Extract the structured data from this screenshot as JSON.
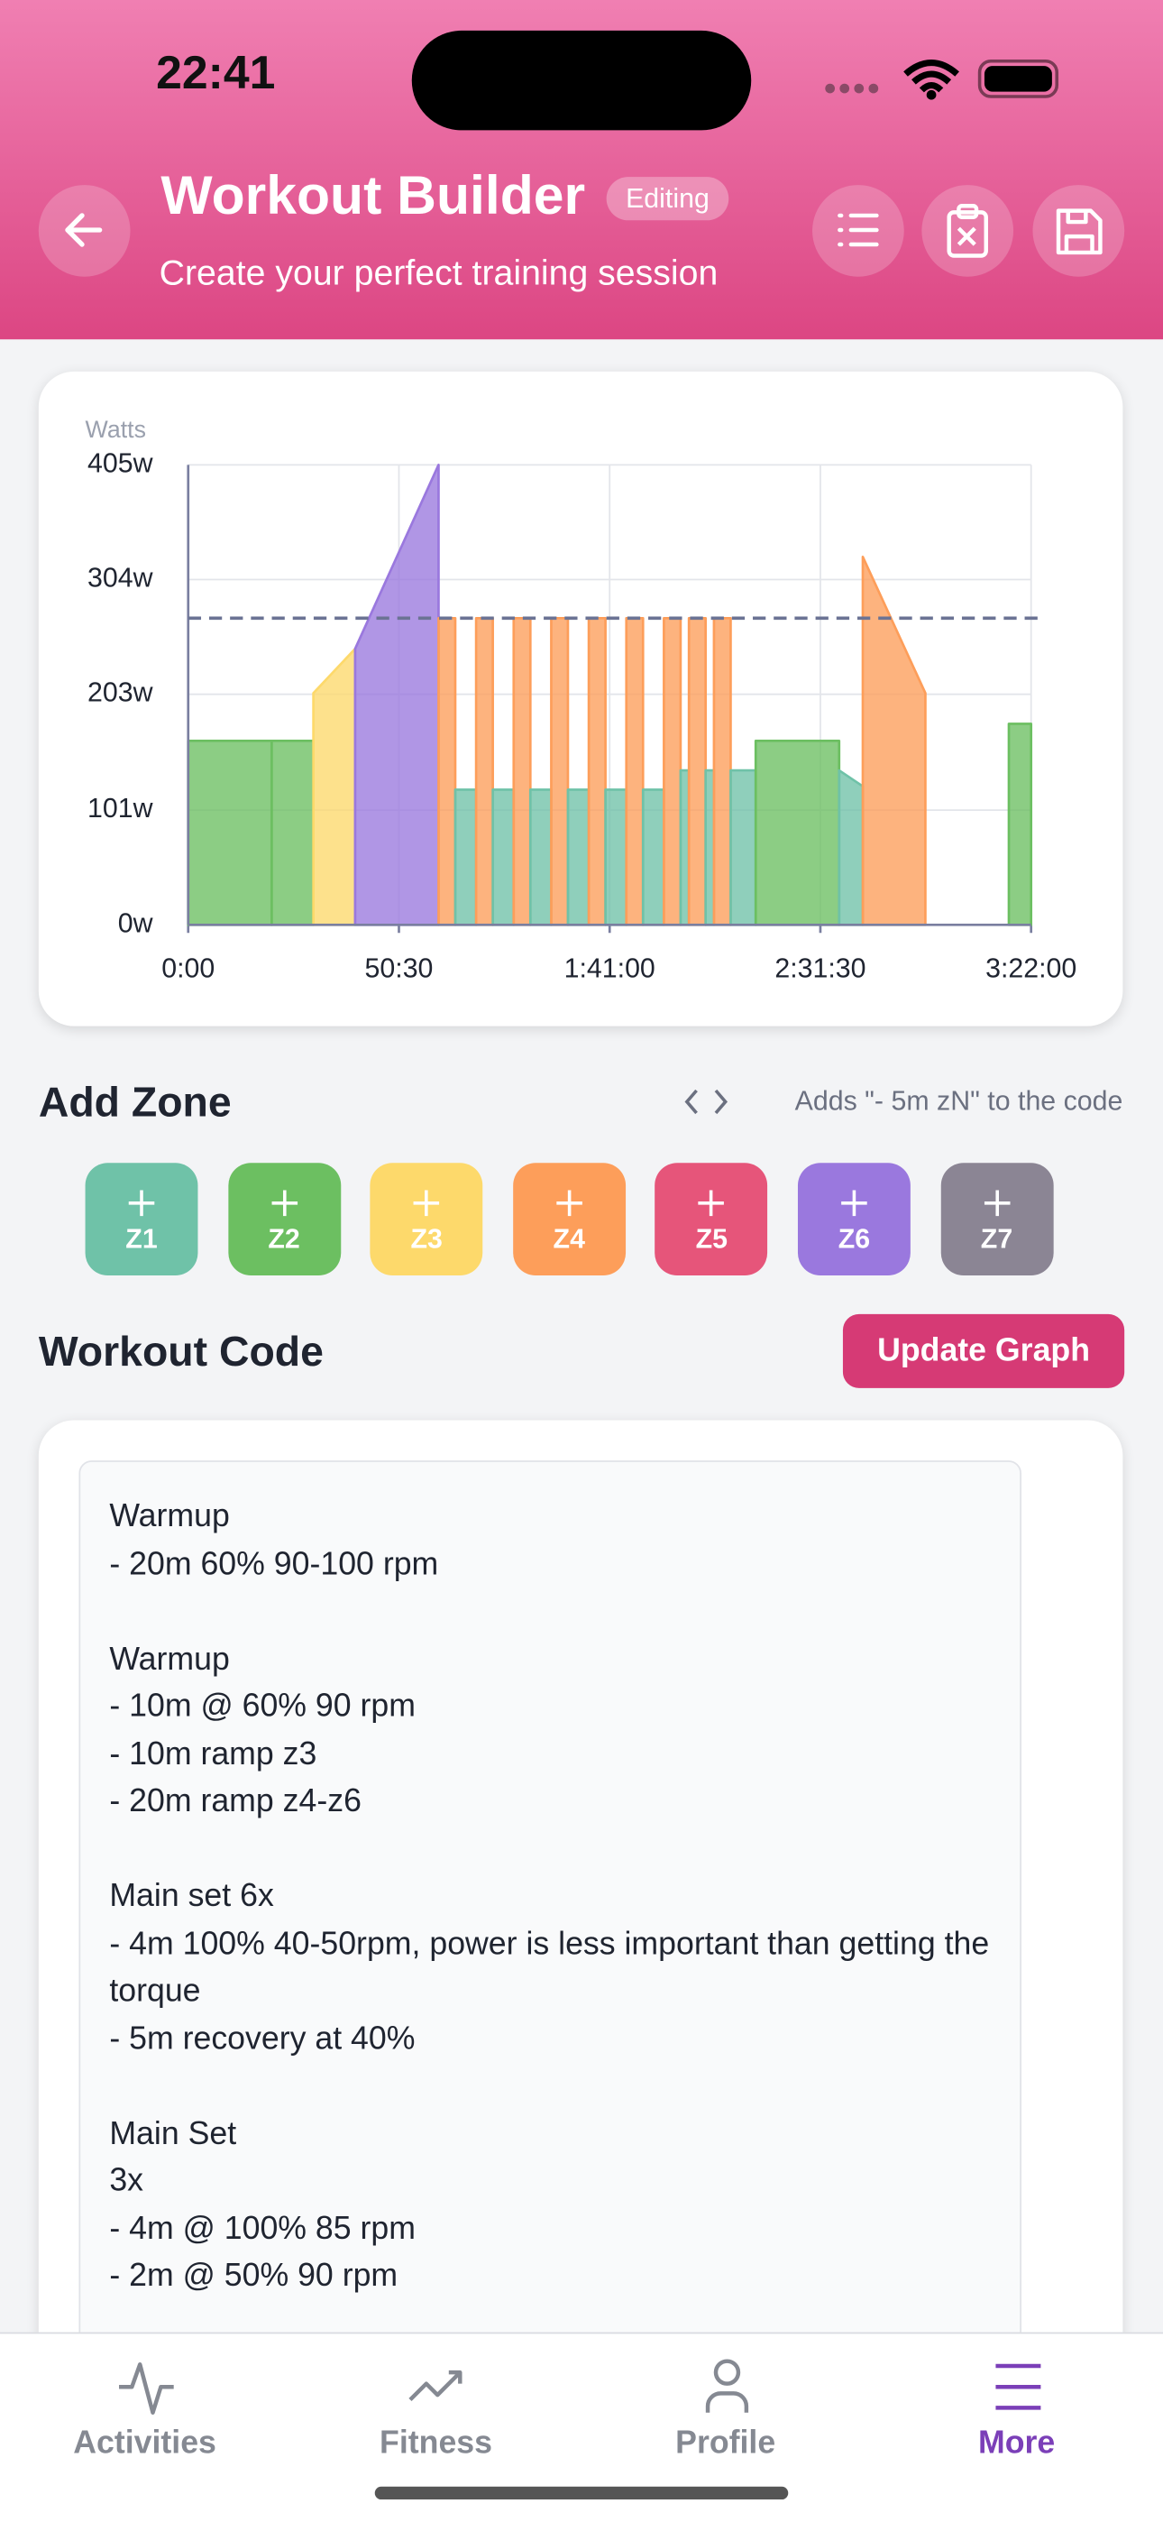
{
  "status_bar": {
    "time": "22:41"
  },
  "header": {
    "title": "Workout Builder",
    "badge": "Editing",
    "subtitle": "Create your perfect training session"
  },
  "chart_data": {
    "type": "area",
    "y_label": "Watts",
    "xlim": [
      0,
      12120
    ],
    "xticks": [
      {
        "value": 0,
        "label": "0:00"
      },
      {
        "value": 3030,
        "label": "50:30"
      },
      {
        "value": 6060,
        "label": "1:41:00"
      },
      {
        "value": 9090,
        "label": "2:31:30"
      },
      {
        "value": 12120,
        "label": "3:22:00"
      }
    ],
    "ylim": [
      0,
      405
    ],
    "yticks": [
      {
        "value": 0,
        "label": "0w"
      },
      {
        "value": 101,
        "label": "101w"
      },
      {
        "value": 203,
        "label": "203w"
      },
      {
        "value": 304,
        "label": "304w"
      },
      {
        "value": 405,
        "label": "405w"
      }
    ],
    "grid": true,
    "threshold": 270,
    "segments": [
      {
        "start": 0,
        "end": 1200,
        "from": 162,
        "to": 162,
        "zone": "Z2"
      },
      {
        "start": 1200,
        "end": 1800,
        "from": 162,
        "to": 162,
        "zone": "Z2"
      },
      {
        "start": 1800,
        "end": 2400,
        "from": 204,
        "to": 243,
        "zone": "Z3"
      },
      {
        "start": 2400,
        "end": 3600,
        "from": 243,
        "to": 405,
        "zone": "Z6"
      },
      {
        "start": 3600,
        "end": 3840,
        "from": 270,
        "to": 270,
        "zone": "Z4"
      },
      {
        "start": 3840,
        "end": 4140,
        "from": 119,
        "to": 119,
        "zone": "Z1"
      },
      {
        "start": 4140,
        "end": 4380,
        "from": 270,
        "to": 270,
        "zone": "Z4"
      },
      {
        "start": 4380,
        "end": 4680,
        "from": 119,
        "to": 119,
        "zone": "Z1"
      },
      {
        "start": 4680,
        "end": 4920,
        "from": 270,
        "to": 270,
        "zone": "Z4"
      },
      {
        "start": 4920,
        "end": 5220,
        "from": 119,
        "to": 119,
        "zone": "Z1"
      },
      {
        "start": 5220,
        "end": 5460,
        "from": 270,
        "to": 270,
        "zone": "Z4"
      },
      {
        "start": 5460,
        "end": 5760,
        "from": 119,
        "to": 119,
        "zone": "Z1"
      },
      {
        "start": 5760,
        "end": 6000,
        "from": 270,
        "to": 270,
        "zone": "Z4"
      },
      {
        "start": 6000,
        "end": 6300,
        "from": 119,
        "to": 119,
        "zone": "Z1"
      },
      {
        "start": 6300,
        "end": 6540,
        "from": 270,
        "to": 270,
        "zone": "Z4"
      },
      {
        "start": 6540,
        "end": 6840,
        "from": 119,
        "to": 119,
        "zone": "Z1"
      },
      {
        "start": 6840,
        "end": 7080,
        "from": 270,
        "to": 270,
        "zone": "Z4"
      },
      {
        "start": 7080,
        "end": 7200,
        "from": 136,
        "to": 136,
        "zone": "Z1"
      },
      {
        "start": 7200,
        "end": 7440,
        "from": 270,
        "to": 270,
        "zone": "Z4"
      },
      {
        "start": 7440,
        "end": 7560,
        "from": 136,
        "to": 136,
        "zone": "Z1"
      },
      {
        "start": 7560,
        "end": 7800,
        "from": 270,
        "to": 270,
        "zone": "Z4"
      },
      {
        "start": 7800,
        "end": 8160,
        "from": 136,
        "to": 136,
        "zone": "Z1"
      },
      {
        "start": 8160,
        "end": 9360,
        "from": 162,
        "to": 162,
        "zone": "Z2"
      },
      {
        "start": 9360,
        "end": 9700,
        "from": 136,
        "to": 122,
        "zone": "Z1"
      },
      {
        "start": 9700,
        "end": 10600,
        "from": 324,
        "to": 204,
        "zone": "Z4"
      },
      {
        "start": 11800,
        "end": 12120,
        "from": 177,
        "to": 177,
        "zone": "Z2"
      }
    ]
  },
  "add_zone": {
    "title": "Add Zone",
    "hint": "Adds \"- 5m zN\" to the code",
    "zones": [
      {
        "label": "Z1",
        "color": "#6fc2a8"
      },
      {
        "label": "Z2",
        "color": "#6cbf61"
      },
      {
        "label": "Z3",
        "color": "#fdd96b"
      },
      {
        "label": "Z4",
        "color": "#fd9e5a"
      },
      {
        "label": "Z5",
        "color": "#e6557a"
      },
      {
        "label": "Z6",
        "color": "#9a78de"
      },
      {
        "label": "Z7",
        "color": "#8b8594"
      }
    ]
  },
  "workout_code": {
    "title": "Workout Code",
    "button": "Update Graph",
    "blocks": [
      [
        "Warmup",
        "- 20m 60% 90-100 rpm"
      ],
      [
        "Warmup",
        "- 10m @ 60% 90 rpm",
        "- 10m ramp z3",
        "- 20m ramp z4-z6"
      ],
      [
        "Main set 6x",
        "- 4m 100% 40-50rpm, power is less important than getting the torque",
        "- 5m recovery at 40%"
      ],
      [
        "Main Set",
        "3x",
        "- 4m @ 100% 85 rpm",
        "- 2m @ 50% 90 rpm"
      ]
    ]
  },
  "tab_bar": {
    "tabs": [
      "Activities",
      "Fitness",
      "Profile",
      "More"
    ],
    "active": 3
  }
}
